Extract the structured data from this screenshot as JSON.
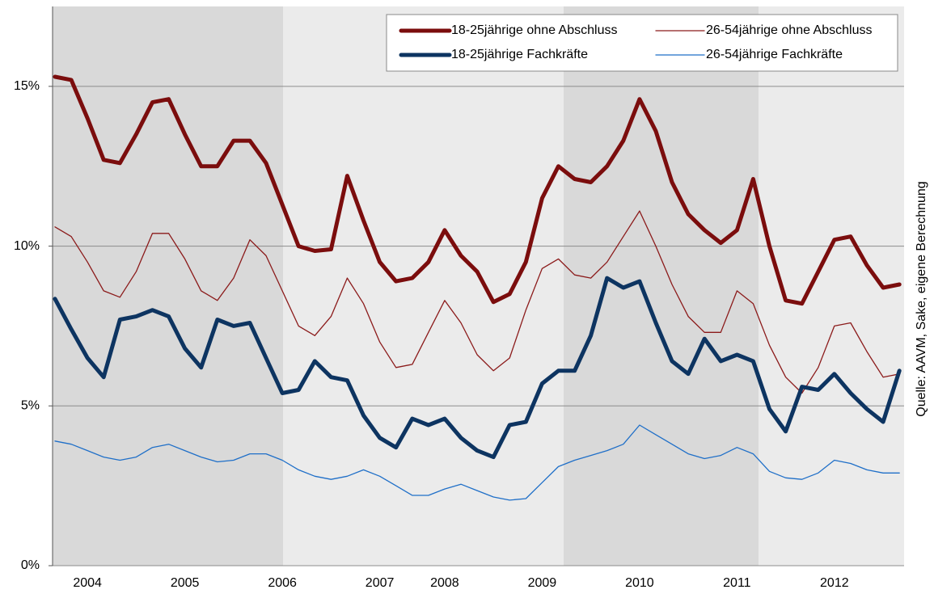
{
  "chart_data": {
    "type": "line",
    "source": "Quelle: AAVM, Sake, eigene Berechnung",
    "categories": [
      null,
      null,
      "2004",
      null,
      null,
      null,
      null,
      null,
      "2005",
      null,
      null,
      null,
      null,
      null,
      "2006",
      null,
      null,
      null,
      null,
      null,
      "2007",
      null,
      null,
      null,
      "2008",
      null,
      null,
      null,
      null,
      null,
      "2009",
      null,
      null,
      null,
      null,
      null,
      "2010",
      null,
      null,
      null,
      null,
      null,
      "2011",
      null,
      null,
      null,
      null,
      null,
      "2012",
      null,
      null,
      null,
      null
    ],
    "series": [
      {
        "name": "18-25jährige ohne Abschluss",
        "color": "#7b0d0d",
        "line_width": 5,
        "values": [
          15.3,
          15.2,
          14.0,
          12.7,
          12.6,
          13.5,
          14.5,
          14.6,
          13.5,
          12.5,
          12.5,
          13.3,
          13.3,
          12.6,
          11.3,
          10.0,
          9.85,
          9.9,
          12.2,
          10.8,
          9.5,
          8.9,
          9.0,
          9.5,
          10.5,
          9.7,
          9.2,
          8.25,
          8.5,
          9.5,
          11.5,
          12.5,
          12.1,
          12.0,
          12.5,
          13.3,
          14.6,
          13.6,
          12.0,
          11.0,
          10.5,
          10.1,
          10.5,
          12.1,
          10.0,
          8.3,
          8.2,
          9.2,
          10.2,
          10.3,
          9.4,
          8.7,
          8.8
        ]
      },
      {
        "name": "26-54jährige ohne Abschluss",
        "color": "#8b1a1a",
        "line_width": 1.3,
        "values": [
          10.6,
          10.3,
          9.5,
          8.6,
          8.4,
          9.2,
          10.4,
          10.4,
          9.6,
          8.6,
          8.3,
          9.0,
          10.2,
          9.7,
          8.6,
          7.5,
          7.2,
          7.8,
          9.0,
          8.2,
          7.0,
          6.2,
          6.3,
          7.3,
          8.3,
          7.6,
          6.6,
          6.1,
          6.5,
          8.0,
          9.3,
          9.6,
          9.1,
          9.0,
          9.5,
          10.3,
          11.1,
          10.0,
          8.8,
          7.8,
          7.3,
          7.3,
          8.6,
          8.2,
          6.9,
          5.9,
          5.4,
          6.2,
          7.5,
          7.6,
          6.7,
          5.9,
          6.0
        ]
      },
      {
        "name": "18-25jährige Fachkräfte",
        "color": "#0d3461",
        "line_width": 5,
        "values": [
          8.35,
          7.4,
          6.5,
          5.9,
          7.7,
          7.8,
          8.0,
          7.8,
          6.8,
          6.2,
          7.7,
          7.5,
          7.6,
          6.5,
          5.4,
          5.5,
          6.4,
          5.9,
          5.8,
          4.7,
          4.0,
          3.7,
          4.6,
          4.4,
          4.6,
          4.0,
          3.6,
          3.4,
          4.4,
          4.5,
          5.7,
          6.1,
          6.1,
          7.2,
          9.0,
          8.7,
          8.9,
          7.6,
          6.4,
          6.0,
          7.1,
          6.4,
          6.6,
          6.4,
          4.9,
          4.2,
          5.6,
          5.5,
          6.0,
          5.4,
          4.9,
          4.5,
          6.1
        ]
      },
      {
        "name": "26-54jährige Fachkräfte",
        "color": "#1f6fc8",
        "line_width": 1.3,
        "values": [
          3.9,
          3.8,
          3.6,
          3.4,
          3.3,
          3.4,
          3.7,
          3.8,
          3.6,
          3.4,
          3.25,
          3.3,
          3.5,
          3.5,
          3.3,
          3.0,
          2.8,
          2.7,
          2.8,
          3.0,
          2.8,
          2.5,
          2.2,
          2.2,
          2.4,
          2.55,
          2.35,
          2.15,
          2.05,
          2.1,
          2.6,
          3.1,
          3.3,
          3.45,
          3.6,
          3.8,
          4.4,
          4.1,
          3.8,
          3.5,
          3.35,
          3.45,
          3.7,
          3.5,
          2.95,
          2.75,
          2.7,
          2.9,
          3.3,
          3.2,
          3.0,
          2.9,
          2.9
        ]
      }
    ],
    "ylim": [
      0,
      17.5
    ],
    "yticks": [
      {
        "value": 0,
        "label": "0%"
      },
      {
        "value": 5,
        "label": "5%"
      },
      {
        "value": 10,
        "label": "10%"
      },
      {
        "value": 15,
        "label": "15%"
      }
    ],
    "grid": true,
    "legend": "upper right"
  }
}
